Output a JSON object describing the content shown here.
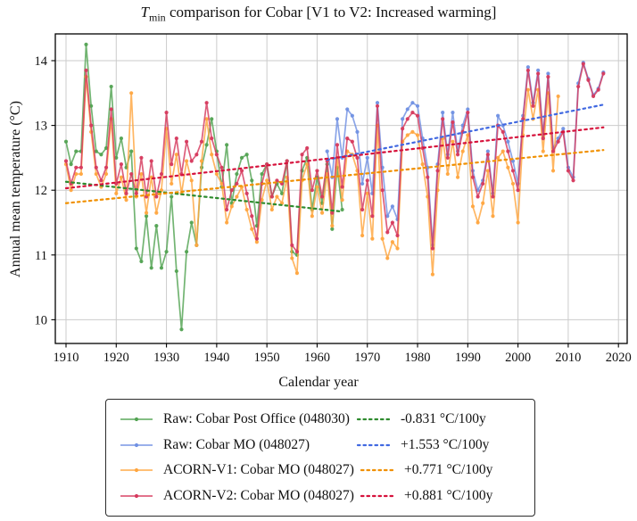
{
  "chart_data": {
    "type": "line",
    "title": {
      "t_var": "T",
      "t_sub": "min",
      "rest": " comparison for Cobar  [V1 to V2: Increased warming]"
    },
    "xlabel": "Calendar year",
    "ylabel": "Annual mean temperature (°C)",
    "xlim": [
      1907.9,
      2021.7
    ],
    "ylim": [
      9.63,
      14.41
    ],
    "xticks": [
      1910,
      1920,
      1930,
      1940,
      1950,
      1960,
      1970,
      1980,
      1990,
      2000,
      2010,
      2020
    ],
    "yticks": [
      10,
      11,
      12,
      13,
      14
    ],
    "grid": true,
    "legend_position": "below-plot",
    "colors": {
      "green": "#53a353",
      "blue": "#7191e3",
      "orange": "#ffa640",
      "red": "#d63a5e",
      "grid": "#cbcbcb",
      "text": "#111111"
    },
    "series": [
      {
        "id": "raw-cobar-post-office",
        "name": "Raw: Cobar Post Office (048030)",
        "color": "#53a353",
        "start_year": 1910,
        "values": [
          12.75,
          12.4,
          12.6,
          12.6,
          14.25,
          13.3,
          12.6,
          12.55,
          12.65,
          13.6,
          12.5,
          12.8,
          12.35,
          12.6,
          11.1,
          10.9,
          11.6,
          10.8,
          11.45,
          10.8,
          11.05,
          11.9,
          10.75,
          9.85,
          11.05,
          11.5,
          11.15,
          12.35,
          12.7,
          13.1,
          12.6,
          12.05,
          12.7,
          11.8,
          12.25,
          12.5,
          12.55,
          12.15,
          11.45,
          12.25,
          12.4,
          11.9,
          12.1,
          11.95,
          12.45,
          11.05,
          11.0,
          12.3,
          12.5,
          11.7,
          12.2,
          11.8,
          12.4,
          11.4,
          12.35,
          11.7
        ]
      },
      {
        "id": "raw-cobar-mo",
        "name": "Raw: Cobar MO (048027)",
        "color": "#7191e3",
        "start_year": 1962,
        "values": [
          12.6,
          12.2,
          13.1,
          12.5,
          13.25,
          13.15,
          12.9,
          12.1,
          12.5,
          11.95,
          13.35,
          12.35,
          11.6,
          11.75,
          11.55,
          13.1,
          13.25,
          13.35,
          13.3,
          12.8,
          12.35,
          11.15,
          12.4,
          13.2,
          12.55,
          13.2,
          12.6,
          13.0,
          13.25,
          12.3,
          12.0,
          12.15,
          12.6,
          11.95,
          13.15,
          13.0,
          12.75,
          12.45,
          12.1,
          13.15,
          13.9,
          13.35,
          13.85,
          12.85,
          13.8,
          12.65,
          12.8,
          12.95,
          12.35,
          12.2,
          13.65,
          13.97,
          13.72,
          13.47,
          13.57,
          13.82
        ]
      },
      {
        "id": "acorn-v1-cobar-mo",
        "name": "ACORN-V1: Cobar MO (048027)",
        "color": "#ffa640",
        "start_year": 1910,
        "values": [
          12.4,
          12.0,
          12.25,
          12.25,
          13.75,
          12.9,
          12.25,
          12.05,
          12.25,
          13.1,
          11.95,
          12.2,
          11.85,
          13.5,
          11.9,
          12.25,
          11.65,
          12.2,
          11.65,
          12.0,
          12.95,
          12.1,
          12.55,
          11.95,
          12.45,
          12.15,
          11.15,
          12.45,
          13.1,
          12.55,
          12.25,
          12.1,
          11.5,
          11.75,
          11.9,
          12.05,
          11.7,
          11.4,
          11.2,
          11.85,
          12.15,
          11.7,
          11.9,
          11.8,
          12.2,
          10.95,
          10.72,
          12.15,
          12.4,
          11.6,
          12.05,
          11.65,
          12.25,
          11.45,
          12.5,
          11.85,
          12.6,
          12.55,
          12.3,
          11.3,
          11.95,
          11.25,
          13.0,
          11.25,
          10.95,
          11.2,
          11.1,
          12.75,
          12.85,
          12.9,
          12.85,
          12.4,
          11.9,
          10.7,
          12.0,
          12.8,
          12.25,
          12.75,
          12.2,
          12.6,
          12.85,
          11.75,
          11.5,
          11.8,
          12.3,
          11.6,
          12.5,
          12.6,
          12.35,
          12.1,
          11.5,
          12.85,
          13.55,
          13.1,
          13.55,
          12.6,
          13.5,
          12.3,
          13.45
        ]
      },
      {
        "id": "acorn-v2-cobar-mo",
        "name": "ACORN-V2: Cobar MO (048027)",
        "color": "#d63a5e",
        "start_year": 1910,
        "values": [
          12.45,
          12.1,
          12.35,
          12.35,
          13.85,
          13.0,
          12.35,
          12.15,
          12.35,
          13.25,
          12.1,
          12.4,
          11.95,
          12.25,
          11.95,
          12.5,
          11.9,
          12.45,
          11.9,
          12.25,
          13.2,
          12.4,
          12.8,
          12.25,
          12.75,
          12.45,
          12.55,
          12.75,
          13.35,
          12.8,
          12.55,
          12.35,
          11.7,
          12.0,
          12.1,
          12.3,
          11.95,
          11.6,
          11.25,
          12.1,
          12.4,
          11.9,
          12.15,
          12.1,
          12.45,
          11.15,
          11.05,
          12.55,
          12.65,
          12.0,
          12.3,
          11.9,
          12.45,
          11.65,
          12.7,
          12.05,
          12.8,
          12.75,
          12.5,
          11.7,
          12.15,
          11.6,
          13.3,
          12.0,
          11.35,
          11.5,
          11.3,
          12.95,
          13.1,
          13.2,
          13.15,
          12.65,
          12.2,
          11.1,
          12.3,
          13.1,
          12.5,
          13.05,
          12.55,
          12.9,
          13.2,
          12.2,
          11.9,
          12.1,
          12.55,
          11.9,
          13.0,
          12.9,
          12.6,
          12.3,
          12.0,
          13.1,
          13.85,
          13.3,
          13.8,
          12.8,
          13.75,
          12.6,
          12.75,
          12.9,
          12.3,
          12.15,
          13.6,
          13.95,
          13.7,
          13.45,
          13.55,
          13.8
        ]
      }
    ],
    "trends": [
      {
        "id": "trend-raw-post-office",
        "label": "-0.831 °C/100y",
        "color": "#2e8b2e",
        "x": [
          1910,
          1965
        ],
        "y": [
          12.13,
          11.67
        ]
      },
      {
        "id": "trend-raw-mo",
        "label": "+1.553 °C/100y",
        "color": "#4169e1",
        "x": [
          1962,
          2017
        ],
        "y": [
          12.47,
          13.32
        ]
      },
      {
        "id": "trend-acorn-v1",
        "label": "+0.771 °C/100y",
        "color": "#f09000",
        "x": [
          1910,
          2017
        ],
        "y": [
          11.8,
          12.62
        ]
      },
      {
        "id": "trend-acorn-v2",
        "label": "+0.881 °C/100y",
        "color": "#d6123c",
        "x": [
          1910,
          2017
        ],
        "y": [
          12.03,
          12.97
        ]
      }
    ],
    "legend": [
      {
        "series_label": "Raw: Cobar Post Office (048030)",
        "trend_label": "-0.831 °C/100y",
        "series_color": "#53a353",
        "trend_color": "#2e8b2e"
      },
      {
        "series_label": "Raw: Cobar MO (048027)",
        "trend_label": "+1.553 °C/100y",
        "series_color": "#7191e3",
        "trend_color": "#4169e1"
      },
      {
        "series_label": "ACORN-V1: Cobar MO (048027)",
        "trend_label": "+0.771 °C/100y",
        "series_color": "#ffa640",
        "trend_color": "#f09000"
      },
      {
        "series_label": "ACORN-V2: Cobar MO (048027)",
        "trend_label": "+0.881 °C/100y",
        "series_color": "#d63a5e",
        "trend_color": "#d6123c"
      }
    ]
  }
}
